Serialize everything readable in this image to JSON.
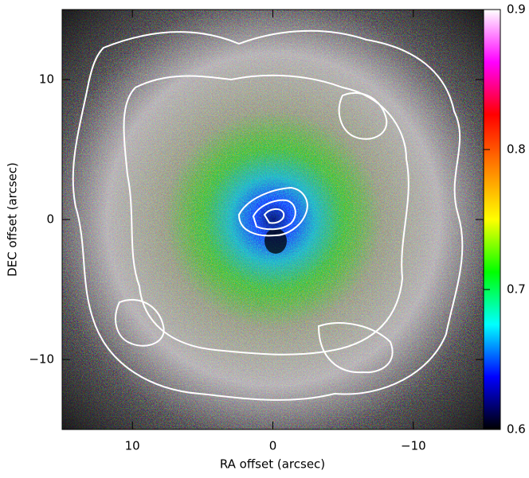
{
  "chart_data": {
    "type": "image",
    "x_label": "RA offset (arcsec)",
    "y_label": "DEC offset (arcsec)",
    "xlim": [
      15,
      -15
    ],
    "ylim": [
      -15,
      15
    ],
    "xticks": [
      10,
      0,
      {
        "value": -10,
        "label": "−10"
      }
    ],
    "yticks": [
      {
        "value": -10,
        "label": "−10"
      },
      0,
      10
    ],
    "colorbar": {
      "lim": [
        0.6,
        0.9
      ],
      "ticks": [
        0.6,
        0.7,
        0.8,
        0.9
      ],
      "colors": [
        "#000000",
        "#0000ff",
        "#00ffff",
        "#00ff00",
        "#ffff00",
        "#ff8000",
        "#ff0000",
        "#ff00ff",
        "#ffffff"
      ]
    }
  }
}
